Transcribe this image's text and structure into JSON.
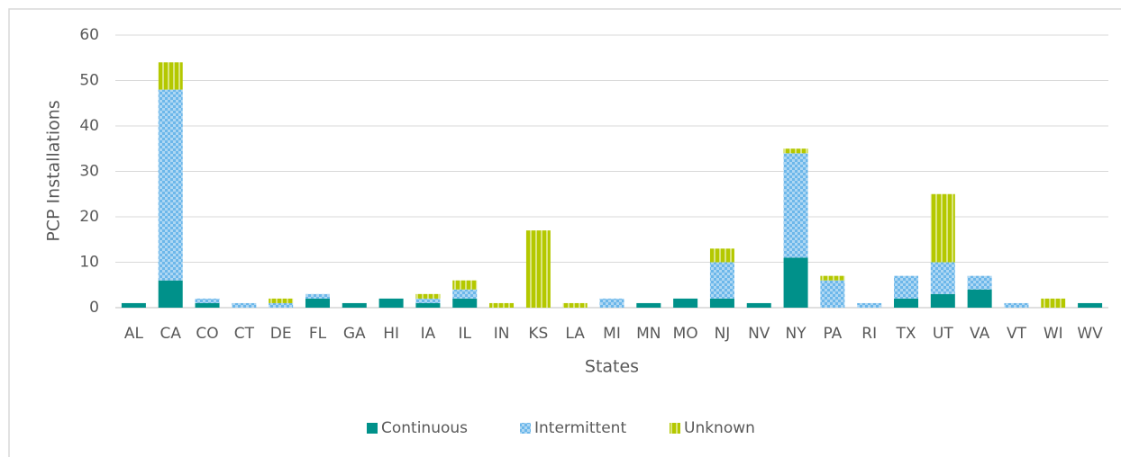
{
  "chart_data": {
    "type": "stacked_bar",
    "x_label": "States",
    "y_label": "PCP Installations",
    "categories": [
      "AL",
      "CA",
      "CO",
      "CT",
      "DE",
      "FL",
      "GA",
      "HI",
      "IA",
      "IL",
      "IN",
      "KS",
      "LA",
      "MI",
      "MN",
      "MO",
      "NJ",
      "NV",
      "NY",
      "PA",
      "RI",
      "TX",
      "UT",
      "VA",
      "VT",
      "WI",
      "WV"
    ],
    "series": [
      {
        "name": "Continuous",
        "color": "#00918a",
        "pattern": "solid",
        "values": [
          1,
          6,
          1,
          0,
          0,
          2,
          1,
          2,
          1,
          2,
          0,
          0,
          0,
          0,
          1,
          2,
          2,
          1,
          11,
          0,
          0,
          2,
          3,
          4,
          0,
          0,
          1
        ]
      },
      {
        "name": "Intermittent",
        "color": "#6cb7ea",
        "pattern": "checker",
        "values": [
          0,
          42,
          1,
          1,
          1,
          1,
          0,
          0,
          1,
          2,
          0,
          0,
          0,
          2,
          0,
          0,
          8,
          0,
          23,
          6,
          1,
          5,
          7,
          3,
          1,
          0,
          0
        ]
      },
      {
        "name": "Unknown",
        "color": "#b4c800",
        "pattern": "stripes",
        "values": [
          0,
          6,
          0,
          0,
          1,
          0,
          0,
          0,
          1,
          2,
          1,
          17,
          1,
          0,
          0,
          0,
          3,
          0,
          1,
          1,
          0,
          0,
          15,
          0,
          0,
          2,
          0
        ]
      }
    ],
    "ylim": [
      0,
      60
    ],
    "yticks": [
      0,
      10,
      20,
      30,
      40,
      50,
      60
    ],
    "grid": true,
    "legend": "bottom"
  }
}
